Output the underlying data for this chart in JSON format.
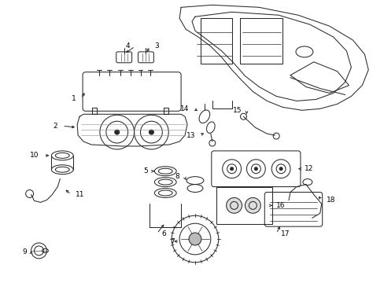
{
  "bg_color": "#ffffff",
  "line_color": "#2a2a2a",
  "lw": 0.75,
  "figsize": [
    4.89,
    3.6
  ],
  "dpi": 100
}
